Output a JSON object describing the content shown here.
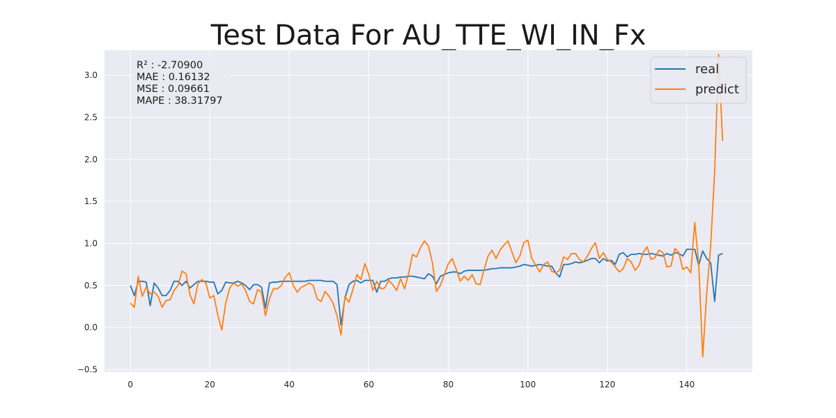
{
  "chart_data": {
    "type": "line",
    "title": "Test Data For AU_TTE_WI_IN_Fx",
    "xlabel": "",
    "ylabel": "",
    "xlim": [
      -6.5,
      156.5
    ],
    "ylim": [
      -0.53,
      3.3
    ],
    "xticks": [
      0,
      20,
      40,
      60,
      80,
      100,
      120,
      140
    ],
    "yticks": [
      -0.5,
      0.0,
      0.5,
      1.0,
      1.5,
      2.0,
      2.5,
      3.0
    ],
    "ytick_labels": [
      "−0.5",
      "0.0",
      "0.5",
      "1.0",
      "1.5",
      "2.0",
      "2.5",
      "3.0"
    ],
    "grid": true,
    "legend_position": "top-right",
    "colors": {
      "real": "#1f77b4",
      "predict": "#ff7f0e",
      "background": "#eaeaf2",
      "grid": "#ffffff"
    },
    "stats": [
      "R² : -2.70900",
      "MAE : 0.16132",
      "MSE : 0.09661",
      "MAPE : 38.31797"
    ],
    "series": [
      {
        "name": "real",
        "values": [
          0.5,
          0.38,
          0.55,
          0.55,
          0.54,
          0.26,
          0.53,
          0.47,
          0.38,
          0.38,
          0.44,
          0.55,
          0.55,
          0.5,
          0.55,
          0.47,
          0.51,
          0.55,
          0.55,
          0.55,
          0.54,
          0.54,
          0.4,
          0.44,
          0.54,
          0.53,
          0.53,
          0.55,
          0.53,
          0.5,
          0.45,
          0.51,
          0.51,
          0.48,
          0.23,
          0.53,
          0.54,
          0.54,
          0.55,
          0.55,
          0.55,
          0.55,
          0.55,
          0.55,
          0.55,
          0.56,
          0.56,
          0.56,
          0.56,
          0.55,
          0.55,
          0.55,
          0.51,
          0.03,
          0.35,
          0.51,
          0.55,
          0.56,
          0.53,
          0.56,
          0.56,
          0.56,
          0.42,
          0.55,
          0.55,
          0.58,
          0.59,
          0.59,
          0.6,
          0.6,
          0.61,
          0.61,
          0.6,
          0.59,
          0.58,
          0.64,
          0.61,
          0.52,
          0.61,
          0.63,
          0.65,
          0.66,
          0.66,
          0.64,
          0.67,
          0.68,
          0.68,
          0.68,
          0.68,
          0.68,
          0.69,
          0.7,
          0.7,
          0.71,
          0.71,
          0.71,
          0.71,
          0.72,
          0.73,
          0.75,
          0.74,
          0.73,
          0.74,
          0.75,
          0.74,
          0.73,
          0.73,
          0.65,
          0.6,
          0.75,
          0.75,
          0.76,
          0.78,
          0.77,
          0.78,
          0.8,
          0.82,
          0.82,
          0.77,
          0.82,
          0.79,
          0.8,
          0.75,
          0.87,
          0.89,
          0.84,
          0.87,
          0.87,
          0.88,
          0.87,
          0.87,
          0.88,
          0.87,
          0.86,
          0.85,
          0.88,
          0.86,
          0.89,
          0.88,
          0.85,
          0.93,
          0.93,
          0.93,
          0.74,
          0.91,
          0.82,
          0.77,
          0.31,
          0.86,
          0.88
        ]
      },
      {
        "name": "predict",
        "values": [
          0.29,
          0.24,
          0.61,
          0.37,
          0.48,
          0.4,
          0.42,
          0.37,
          0.24,
          0.32,
          0.33,
          0.44,
          0.5,
          0.67,
          0.64,
          0.39,
          0.28,
          0.52,
          0.57,
          0.53,
          0.35,
          0.38,
          0.15,
          -0.03,
          0.29,
          0.47,
          0.53,
          0.49,
          0.52,
          0.44,
          0.31,
          0.28,
          0.45,
          0.42,
          0.14,
          0.34,
          0.46,
          0.46,
          0.5,
          0.6,
          0.65,
          0.5,
          0.42,
          0.48,
          0.5,
          0.53,
          0.5,
          0.34,
          0.31,
          0.43,
          0.37,
          0.29,
          0.14,
          -0.09,
          0.37,
          0.3,
          0.45,
          0.63,
          0.57,
          0.76,
          0.63,
          0.44,
          0.55,
          0.46,
          0.47,
          0.56,
          0.51,
          0.44,
          0.58,
          0.46,
          0.64,
          0.87,
          0.84,
          0.95,
          1.03,
          0.97,
          0.77,
          0.43,
          0.5,
          0.63,
          0.76,
          0.82,
          0.69,
          0.55,
          0.61,
          0.56,
          0.63,
          0.52,
          0.51,
          0.69,
          0.85,
          0.92,
          0.82,
          0.92,
          0.98,
          1.03,
          0.9,
          0.77,
          0.85,
          1.01,
          1.04,
          0.82,
          0.74,
          0.66,
          0.75,
          0.78,
          0.67,
          0.65,
          0.68,
          0.84,
          0.81,
          0.88,
          0.88,
          0.81,
          0.78,
          0.85,
          0.94,
          1.01,
          0.82,
          0.89,
          0.81,
          0.78,
          0.72,
          0.66,
          0.7,
          0.82,
          0.78,
          0.68,
          0.74,
          0.89,
          0.96,
          0.81,
          0.83,
          0.92,
          0.89,
          0.72,
          0.73,
          0.94,
          0.89,
          0.69,
          0.72,
          0.65,
          1.25,
          0.75,
          -0.35,
          0.4,
          0.97,
          1.85,
          3.25,
          2.22
        ]
      }
    ]
  }
}
